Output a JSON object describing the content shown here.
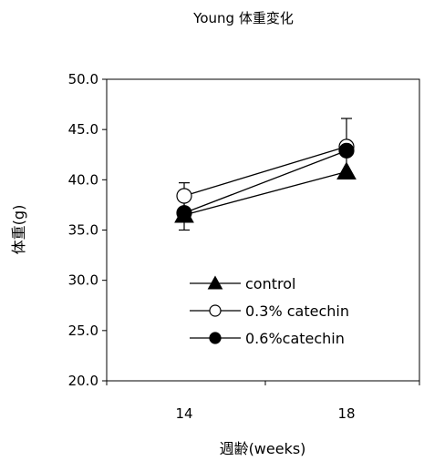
{
  "chart_data": {
    "type": "line",
    "title": "Young 体重変化",
    "xlabel": "週齢(weeks)",
    "ylabel": "体重(g)",
    "categories": [
      "14",
      "18"
    ],
    "ylim": [
      20.0,
      50.0
    ],
    "yticks": [
      "20.0",
      "25.0",
      "30.0",
      "35.0",
      "40.0",
      "45.0",
      "50.0"
    ],
    "grid": false,
    "legend_position": "center",
    "series": [
      {
        "name": "control",
        "marker": "triangle-filled",
        "values": [
          36.5,
          40.8
        ],
        "errors": [
          1.5,
          0.0
        ]
      },
      {
        "name": "0.3% catechin",
        "marker": "circle-open",
        "values": [
          38.4,
          43.3
        ],
        "errors": [
          1.3,
          2.8
        ]
      },
      {
        "name": "0.6%catechin",
        "marker": "circle-filled",
        "values": [
          36.7,
          42.9
        ],
        "errors": [
          0.0,
          0.0
        ]
      }
    ]
  }
}
